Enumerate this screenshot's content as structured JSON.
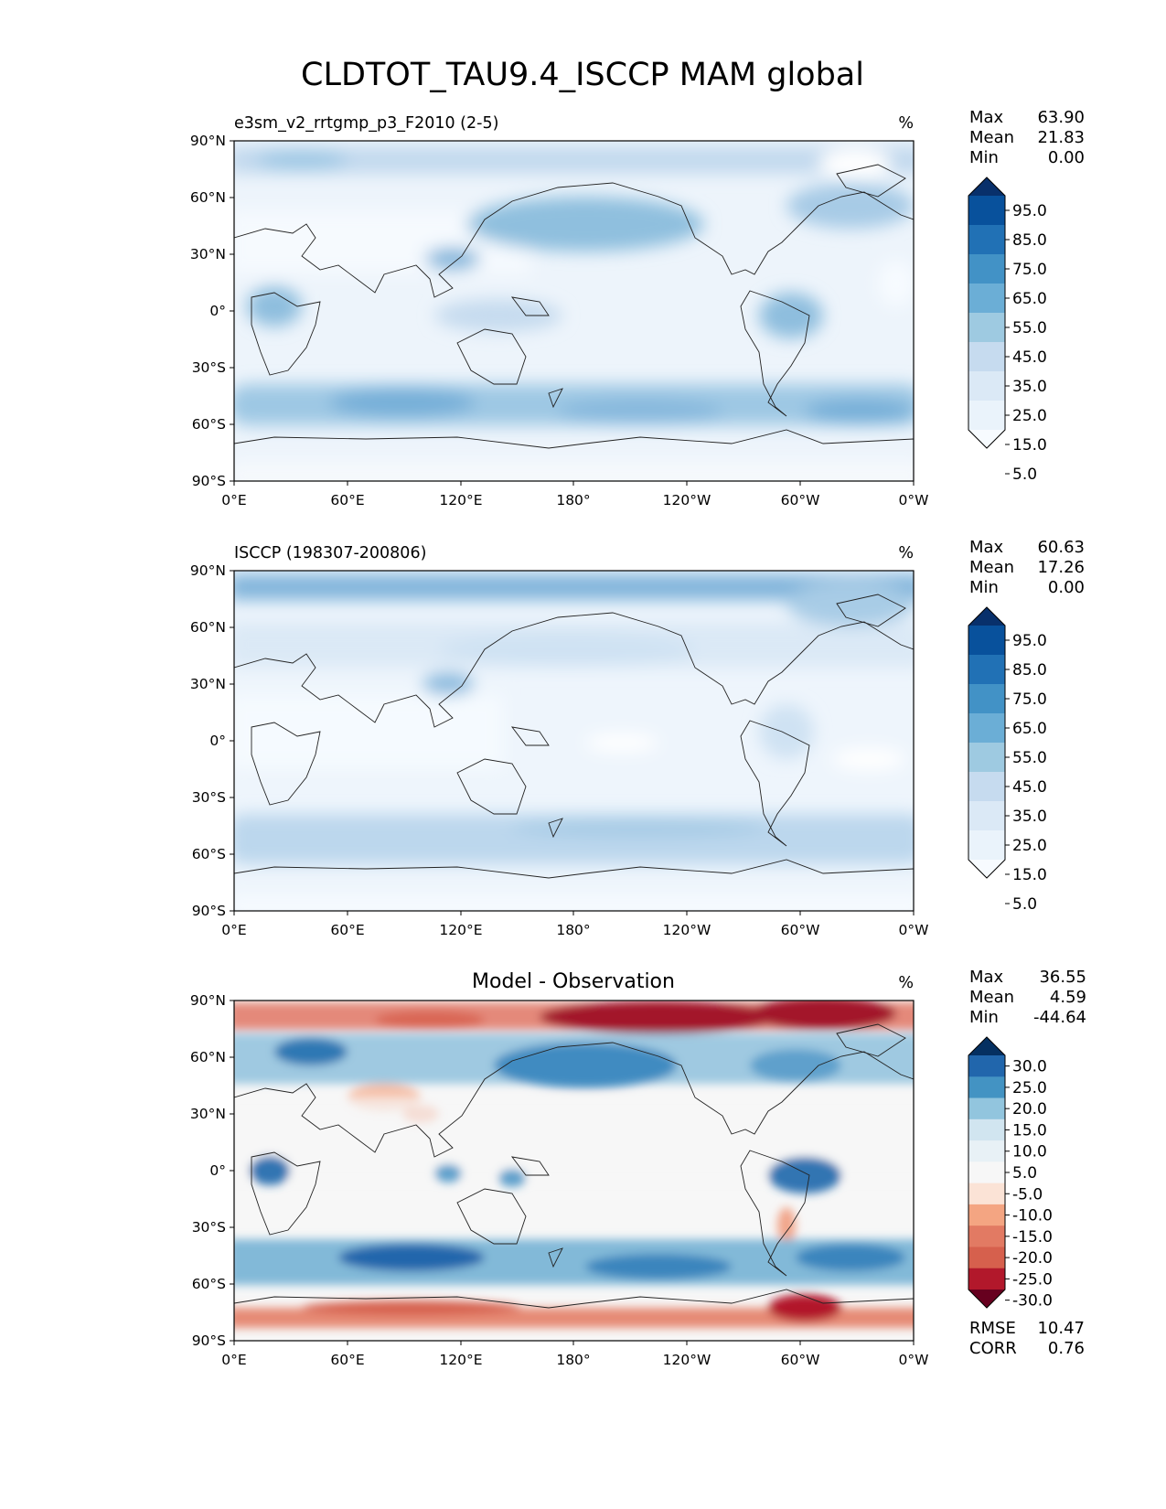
{
  "title": "CLDTOT_TAU9.4_ISCCP MAM global",
  "x_ticks": [
    "0°E",
    "60°E",
    "120°E",
    "180°",
    "120°W",
    "60°W",
    "0°W"
  ],
  "y_ticks": [
    "90°N",
    "60°N",
    "30°N",
    "0°",
    "30°S",
    "60°S",
    "90°S"
  ],
  "stat_labels": {
    "max": "Max",
    "mean": "Mean",
    "min": "Min",
    "rmse": "RMSE",
    "corr": "CORR"
  },
  "panels": [
    {
      "id": "test",
      "title_left": "e3sm_v2_rrtgmp_p3_F2010 (2-5)",
      "title_center": "",
      "units": "%",
      "stats": {
        "max": "63.90",
        "mean": "21.83",
        "min": "0.00"
      },
      "colorbar": {
        "labels": [
          "95.0",
          "85.0",
          "75.0",
          "65.0",
          "55.0",
          "45.0",
          "35.0",
          "25.0",
          "15.0",
          "5.0"
        ],
        "colors": [
          "#08306b",
          "#08519c",
          "#2171b5",
          "#4292c6",
          "#6baed6",
          "#9ecae1",
          "#c6dbef",
          "#dbe9f6",
          "#eaf3fb",
          "#f7fbff"
        ],
        "extend": "both"
      }
    },
    {
      "id": "reference",
      "title_left": "ISCCP (198307-200806)",
      "title_center": "",
      "units": "%",
      "stats": {
        "max": "60.63",
        "mean": "17.26",
        "min": "0.00"
      },
      "colorbar": {
        "labels": [
          "95.0",
          "85.0",
          "75.0",
          "65.0",
          "55.0",
          "45.0",
          "35.0",
          "25.0",
          "15.0",
          "5.0"
        ],
        "colors": [
          "#08306b",
          "#08519c",
          "#2171b5",
          "#4292c6",
          "#6baed6",
          "#9ecae1",
          "#c6dbef",
          "#dbe9f6",
          "#eaf3fb",
          "#f7fbff"
        ],
        "extend": "both"
      }
    },
    {
      "id": "difference",
      "title_left": "",
      "title_center": "Model - Observation",
      "units": "%",
      "stats": {
        "max": "36.55",
        "mean": "4.59",
        "min": "-44.64"
      },
      "metrics": {
        "rmse": "10.47",
        "corr": "0.76"
      },
      "colorbar": {
        "labels": [
          "30.0",
          "25.0",
          "20.0",
          "15.0",
          "10.0",
          "5.0",
          "-5.0",
          "-10.0",
          "-15.0",
          "-20.0",
          "-25.0",
          "-30.0"
        ],
        "colors": [
          "#053061",
          "#2166ac",
          "#4393c3",
          "#92c5de",
          "#d1e5f0",
          "#e8f1f6",
          "#f7f7f7",
          "#fbe3d6",
          "#f4a582",
          "#e27a63",
          "#d6604d",
          "#b2182b",
          "#67001f"
        ],
        "extend": "both"
      }
    }
  ],
  "colors": {
    "ocean_light": "#f4f8fc",
    "land_line": "#222222"
  }
}
